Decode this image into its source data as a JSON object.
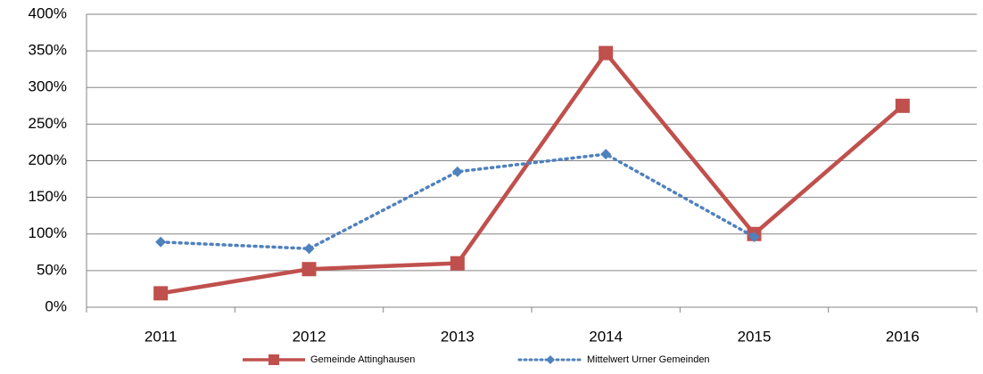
{
  "chart_data": {
    "type": "line",
    "categories": [
      "2011",
      "2012",
      "2013",
      "2014",
      "2015",
      "2016"
    ],
    "series": [
      {
        "name": "Gemeinde Attinghausen",
        "color": "#c0504d",
        "marker": "square",
        "values": [
          19,
          52,
          60,
          347,
          100,
          275
        ]
      },
      {
        "name": "Mittelwert Urner Gemeinden",
        "color": "#4f81bd",
        "marker": "diamond",
        "dashed": true,
        "values": [
          89,
          80,
          185,
          209,
          96,
          null
        ]
      }
    ],
    "ylim": [
      0,
      400
    ],
    "yticks": [
      {
        "value": 0,
        "label": "0%"
      },
      {
        "value": 50,
        "label": "50%"
      },
      {
        "value": 100,
        "label": "100%"
      },
      {
        "value": 150,
        "label": "150%"
      },
      {
        "value": 200,
        "label": "200%"
      },
      {
        "value": 250,
        "label": "250%"
      },
      {
        "value": 300,
        "label": "300%"
      },
      {
        "value": 350,
        "label": "350%"
      },
      {
        "value": 400,
        "label": "400%"
      }
    ],
    "grid": true,
    "legend": "bottom"
  }
}
